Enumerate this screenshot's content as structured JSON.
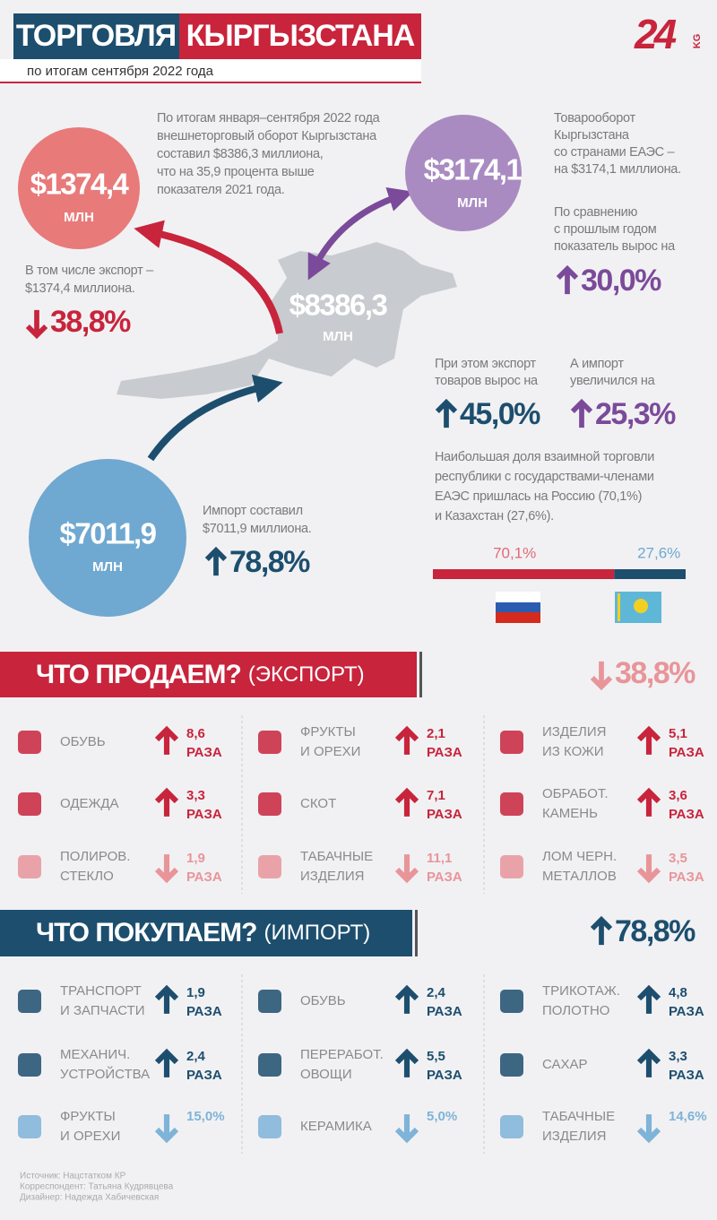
{
  "header": {
    "title_left": "ТОРГОВЛЯ",
    "title_right": "КЫРГЫЗСТАНА",
    "subtitle": "по итогам сентября 2022 года",
    "logo": "24",
    "logo_suffix": "KG"
  },
  "overview": {
    "intro": [
      "По итогам января–сентября 2022 года",
      "внешнеторговый оборот Кыргызстана",
      "составил $8386,3 миллиона,",
      "что на 35,9 процента выше",
      "показателя 2021 года."
    ],
    "total": {
      "value": "$8386,3",
      "unit": "МЛН"
    },
    "export": {
      "value": "$1374,4",
      "unit": "МЛН",
      "text": [
        "В том числе экспорт –",
        "$1374,4 миллиона."
      ],
      "change": "38,8%",
      "direction": "down"
    },
    "import": {
      "value": "$7011,9",
      "unit": "МЛН",
      "text": [
        "Импорт составил",
        "$7011,9 миллиона."
      ],
      "change": "78,8%",
      "direction": "up"
    },
    "eaeu": {
      "value": "$3174,1",
      "unit": "МЛН",
      "text": [
        "Товарооборот",
        "Кыргызстана",
        "со странами ЕАЭС –",
        "на $3174,1 миллиона."
      ],
      "compare_text": [
        "По сравнению",
        "с прошлым годом",
        "показатель вырос на"
      ],
      "change": "30,0%",
      "direction": "up",
      "export_text": [
        "При этом экспорт",
        "товаров вырос на"
      ],
      "export_change": "45,0%",
      "export_direction": "up",
      "import_text": [
        "А импорт",
        "увеличился на"
      ],
      "import_change": "25,3%",
      "import_direction": "up",
      "share_text": [
        "Наибольшая доля взаимной торговли",
        "республики с государствами-членами",
        "ЕАЭС пришлась на Россию (70,1%)",
        "и Казахстан (27,6%)."
      ],
      "shares": {
        "values": [
          70.1,
          27.6
        ],
        "value_labels": [
          "70,1%",
          "27,6%"
        ]
      }
    }
  },
  "export_section": {
    "title": "ЧТО ПРОДАЕМ?",
    "subtitle": "(ЭКСПОРТ)",
    "change": "38,8%",
    "direction": "down",
    "items": [
      {
        "name": [
          "ОБУВЬ"
        ],
        "value": "8,6",
        "unit": "РАЗА",
        "direction": "up"
      },
      {
        "name": [
          "ФРУКТЫ",
          "И ОРЕХИ"
        ],
        "value": "2,1",
        "unit": "РАЗА",
        "direction": "up"
      },
      {
        "name": [
          "ИЗДЕЛИЯ",
          "ИЗ КОЖИ"
        ],
        "value": "5,1",
        "unit": "РАЗА",
        "direction": "up"
      },
      {
        "name": [
          "ОДЕЖДА"
        ],
        "value": "3,3",
        "unit": "РАЗА",
        "direction": "up"
      },
      {
        "name": [
          "СКОТ"
        ],
        "value": "7,1",
        "unit": "РАЗА",
        "direction": "up"
      },
      {
        "name": [
          "ОБРАБОТ.",
          "КАМЕНЬ"
        ],
        "value": "3,6",
        "unit": "РАЗА",
        "direction": "up"
      },
      {
        "name": [
          "ПОЛИРОВ.",
          "СТЕКЛО"
        ],
        "value": "1,9",
        "unit": "РАЗА",
        "direction": "down"
      },
      {
        "name": [
          "ТАБАЧНЫЕ",
          "ИЗДЕЛИЯ"
        ],
        "value": "11,1",
        "unit": "РАЗА",
        "direction": "down"
      },
      {
        "name": [
          "ЛОМ ЧЕРН.",
          "МЕТАЛЛОВ"
        ],
        "value": "3,5",
        "unit": "РАЗА",
        "direction": "down"
      }
    ]
  },
  "import_section": {
    "title": "ЧТО ПОКУПАЕМ?",
    "subtitle": "(ИМПОРТ)",
    "change": "78,8%",
    "direction": "up",
    "items": [
      {
        "name": [
          "ТРАНСПОРТ",
          "И ЗАПЧАСТИ"
        ],
        "value": "1,9",
        "unit": "РАЗА",
        "direction": "up"
      },
      {
        "name": [
          "ОБУВЬ"
        ],
        "value": "2,4",
        "unit": "РАЗА",
        "direction": "up"
      },
      {
        "name": [
          "ТРИКОТАЖ.",
          "ПОЛОТНО"
        ],
        "value": "4,8",
        "unit": "РАЗА",
        "direction": "up"
      },
      {
        "name": [
          "МЕХАНИЧ.",
          "УСТРОЙСТВА"
        ],
        "value": "2,4",
        "unit": "РАЗА",
        "direction": "up"
      },
      {
        "name": [
          "ПЕРЕРАБОТ.",
          "ОВОЩИ"
        ],
        "value": "5,5",
        "unit": "РАЗА",
        "direction": "up"
      },
      {
        "name": [
          "САХАР"
        ],
        "value": "3,3",
        "unit": "РАЗА",
        "direction": "up"
      },
      {
        "name": [
          "ФРУКТЫ",
          "И ОРЕХИ"
        ],
        "value": "15,0%",
        "direction": "down"
      },
      {
        "name": [
          "КЕРАМИКА"
        ],
        "value": "5,0%",
        "direction": "down"
      },
      {
        "name": [
          "ТАБАЧНЫЕ",
          "ИЗДЕЛИЯ"
        ],
        "value": "14,6%",
        "direction": "down"
      }
    ]
  },
  "footer": [
    "Источник: Нацстатком КР",
    "Корреспондент: Татьяна Кудрявцева",
    "Дизайнер: Надежда Хабичевская"
  ]
}
